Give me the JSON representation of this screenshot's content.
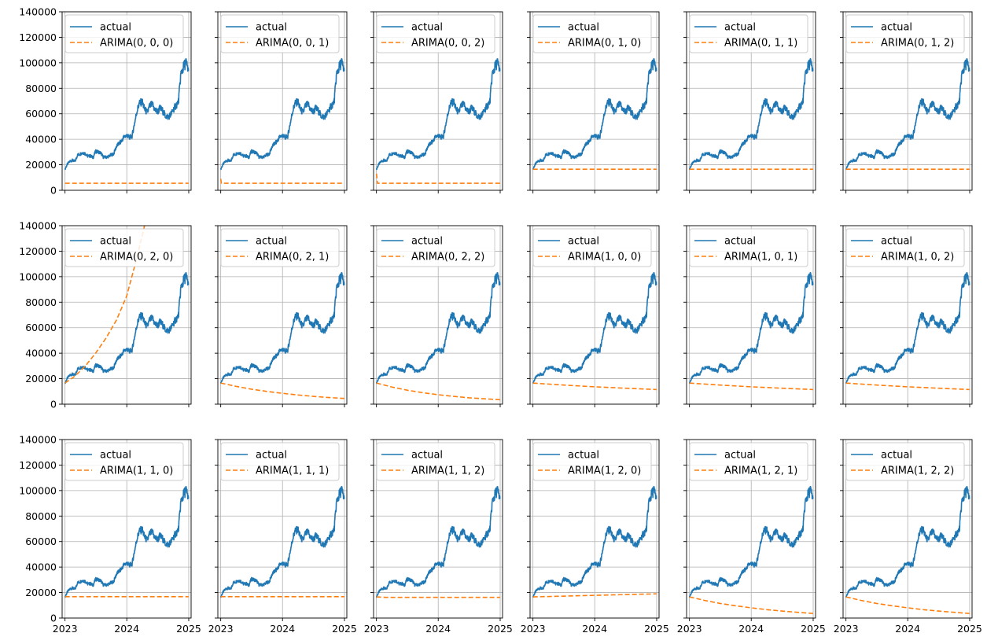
{
  "figure": {
    "layout": {
      "rows": 3,
      "cols": 6
    },
    "shared_y": true,
    "shared_x": true
  },
  "colors": {
    "actual": "#1f77b4",
    "forecast": "#ff7f0e",
    "grid": "#b0b0b0",
    "axes": "#000000",
    "legend_border": "#cccccc"
  },
  "chart_data": {
    "type": "line",
    "x_axis": {
      "range": [
        "2022-12-15",
        "2025-01-15"
      ],
      "ticks": [
        "2023-01-01",
        "2024-01-01",
        "2025-01-01"
      ],
      "tick_labels": [
        "2023",
        "2024",
        "2025"
      ]
    },
    "y_axis": {
      "range": [
        0,
        140000
      ],
      "ticks": [
        0,
        20000,
        40000,
        60000,
        80000,
        100000,
        120000,
        140000
      ],
      "tick_labels": [
        "0",
        "20000",
        "40000",
        "60000",
        "80000",
        "100000",
        "120000",
        "140000"
      ]
    },
    "grid": true,
    "legend_position": "upper left",
    "actual": {
      "name": "actual",
      "x": [
        "2023-01-01",
        "2023-01-15",
        "2023-02-01",
        "2023-02-15",
        "2023-03-01",
        "2023-03-15",
        "2023-04-01",
        "2023-04-15",
        "2023-05-01",
        "2023-05-15",
        "2023-06-01",
        "2023-06-15",
        "2023-07-01",
        "2023-07-15",
        "2023-08-01",
        "2023-08-15",
        "2023-09-01",
        "2023-09-15",
        "2023-10-01",
        "2023-10-15",
        "2023-11-01",
        "2023-11-15",
        "2023-12-01",
        "2023-12-15",
        "2024-01-01",
        "2024-01-15",
        "2024-02-01",
        "2024-02-15",
        "2024-03-01",
        "2024-03-15",
        "2024-04-01",
        "2024-04-15",
        "2024-05-01",
        "2024-05-15",
        "2024-06-01",
        "2024-06-15",
        "2024-07-01",
        "2024-07-15",
        "2024-08-01",
        "2024-08-15",
        "2024-09-01",
        "2024-09-15",
        "2024-10-01",
        "2024-10-15",
        "2024-11-01",
        "2024-11-15",
        "2024-12-01",
        "2024-12-15",
        "2024-12-31"
      ],
      "values": [
        16600,
        20500,
        23000,
        23500,
        22500,
        27500,
        28500,
        29500,
        28800,
        26800,
        27000,
        25500,
        30500,
        30200,
        29200,
        26100,
        25900,
        26600,
        27800,
        28500,
        34500,
        36500,
        38500,
        42000,
        43000,
        41500,
        42500,
        52000,
        62000,
        68000,
        69500,
        63500,
        61000,
        66000,
        67500,
        63000,
        61500,
        64500,
        62000,
        58500,
        57500,
        59000,
        63000,
        66000,
        69500,
        91000,
        96500,
        100500,
        93500
      ]
    },
    "series": [
      {
        "name": "ARIMA(0, 0, 0)",
        "x": [
          "2023-01-01",
          "2024-12-31"
        ],
        "values": [
          5500,
          5500
        ]
      },
      {
        "name": "ARIMA(0, 0, 1)",
        "x": [
          "2023-01-01",
          "2023-01-05",
          "2024-12-31"
        ],
        "values": [
          9000,
          5500,
          5500
        ]
      },
      {
        "name": "ARIMA(0, 0, 2)",
        "x": [
          "2023-01-01",
          "2023-01-07",
          "2024-12-31"
        ],
        "values": [
          13000,
          5500,
          5500
        ]
      },
      {
        "name": "ARIMA(0, 1, 0)",
        "x": [
          "2023-01-01",
          "2024-12-31"
        ],
        "values": [
          16500,
          16500
        ]
      },
      {
        "name": "ARIMA(0, 1, 1)",
        "x": [
          "2023-01-01",
          "2024-12-31"
        ],
        "values": [
          16500,
          16500
        ]
      },
      {
        "name": "ARIMA(0, 1, 2)",
        "x": [
          "2023-01-01",
          "2024-12-31"
        ],
        "values": [
          16500,
          16500
        ]
      },
      {
        "name": "ARIMA(0, 2, 0)",
        "x": [
          "2023-01-01",
          "2023-03-01",
          "2023-05-01",
          "2023-07-01",
          "2023-09-01",
          "2023-11-01",
          "2024-01-01",
          "2024-03-01",
          "2024-04-15"
        ],
        "values": [
          16600,
          22000,
          30000,
          40000,
          52000,
          66000,
          85000,
          115000,
          140000
        ]
      },
      {
        "name": "ARIMA(0, 2, 1)",
        "x": [
          "2023-01-01",
          "2023-04-01",
          "2023-07-01",
          "2023-10-01",
          "2024-01-01",
          "2024-04-01",
          "2024-07-01",
          "2024-10-01",
          "2024-12-31"
        ],
        "values": [
          16600,
          14000,
          11800,
          10000,
          8500,
          7200,
          6100,
          5200,
          4500
        ]
      },
      {
        "name": "ARIMA(0, 2, 2)",
        "x": [
          "2023-01-01",
          "2023-04-01",
          "2023-07-01",
          "2023-10-01",
          "2024-01-01",
          "2024-04-01",
          "2024-07-01",
          "2024-10-01",
          "2024-12-31"
        ],
        "values": [
          16600,
          13500,
          11000,
          9000,
          7400,
          6100,
          5000,
          4200,
          3500
        ]
      },
      {
        "name": "ARIMA(1, 0, 0)",
        "x": [
          "2023-01-01",
          "2023-07-01",
          "2024-01-01",
          "2024-07-01",
          "2024-12-31"
        ],
        "values": [
          16500,
          15000,
          13600,
          12500,
          11500
        ]
      },
      {
        "name": "ARIMA(1, 0, 1)",
        "x": [
          "2023-01-01",
          "2023-07-01",
          "2024-01-01",
          "2024-07-01",
          "2024-12-31"
        ],
        "values": [
          16500,
          15000,
          13600,
          12500,
          11500
        ]
      },
      {
        "name": "ARIMA(1, 0, 2)",
        "x": [
          "2023-01-01",
          "2023-07-01",
          "2024-01-01",
          "2024-07-01",
          "2024-12-31"
        ],
        "values": [
          16500,
          15000,
          13600,
          12500,
          11500
        ]
      },
      {
        "name": "ARIMA(1, 1, 0)",
        "x": [
          "2023-01-01",
          "2024-12-31"
        ],
        "values": [
          16800,
          16800
        ]
      },
      {
        "name": "ARIMA(1, 1, 1)",
        "x": [
          "2023-01-01",
          "2024-12-31"
        ],
        "values": [
          16800,
          16800
        ]
      },
      {
        "name": "ARIMA(1, 1, 2)",
        "x": [
          "2023-01-01",
          "2023-03-01",
          "2024-12-31"
        ],
        "values": [
          16600,
          16200,
          16200
        ]
      },
      {
        "name": "ARIMA(1, 2, 0)",
        "x": [
          "2023-01-01",
          "2024-01-01",
          "2024-12-31"
        ],
        "values": [
          16600,
          17800,
          19000
        ]
      },
      {
        "name": "ARIMA(1, 2, 1)",
        "x": [
          "2023-01-01",
          "2023-04-01",
          "2023-07-01",
          "2023-10-01",
          "2024-01-01",
          "2024-04-01",
          "2024-07-01",
          "2024-10-01",
          "2024-12-31"
        ],
        "values": [
          16600,
          13800,
          11500,
          9600,
          8000,
          6600,
          5500,
          4500,
          3600
        ]
      },
      {
        "name": "ARIMA(1, 2, 2)",
        "x": [
          "2023-01-01",
          "2023-04-01",
          "2023-07-01",
          "2023-10-01",
          "2024-01-01",
          "2024-04-01",
          "2024-07-01",
          "2024-10-01",
          "2024-12-31"
        ],
        "values": [
          16600,
          13800,
          11500,
          9600,
          8000,
          6600,
          5500,
          4500,
          3600
        ]
      }
    ]
  }
}
